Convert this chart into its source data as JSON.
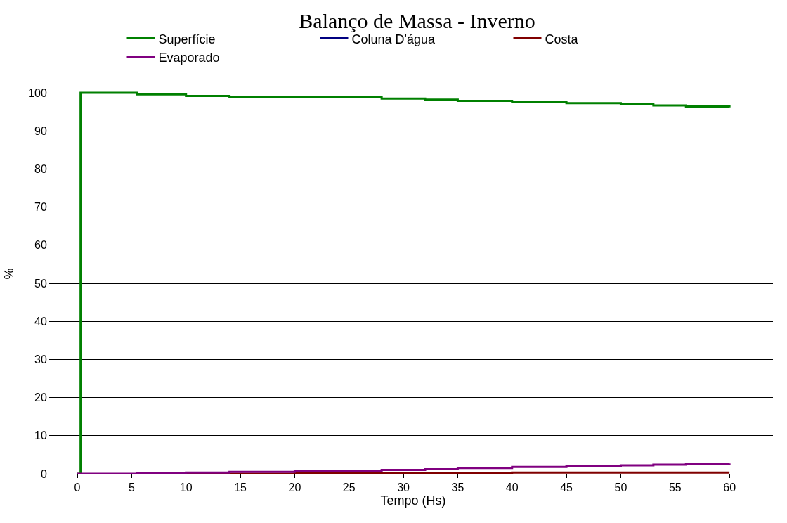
{
  "chart_data": {
    "type": "step",
    "title": "Balanço de Massa - Inverno",
    "xlabel": "Tempo (Hs)",
    "ylabel": "%",
    "x": [
      0,
      0.3,
      5.5,
      10,
      14,
      20,
      28,
      32,
      35,
      40,
      45,
      50,
      53,
      56,
      60
    ],
    "series": [
      {
        "name": "Superfície",
        "color": "#008000",
        "values": [
          0,
          100,
          99.6,
          99.2,
          99.0,
          98.8,
          98.5,
          98.2,
          97.9,
          97.6,
          97.3,
          97.0,
          96.7,
          96.4,
          96.2
        ]
      },
      {
        "name": "Coluna D'água",
        "color": "#000080",
        "values": [
          null,
          null,
          null,
          null,
          null,
          null,
          null,
          null,
          null,
          null,
          null,
          null,
          null,
          null,
          null
        ]
      },
      {
        "name": "Costa",
        "color": "#800000",
        "values": [
          null,
          null,
          null,
          0,
          0,
          0.1,
          0.1,
          0.2,
          0.2,
          0.3,
          0.3,
          0.3,
          0.3,
          0.3,
          0.3
        ]
      },
      {
        "name": "Evaporado",
        "color": "#800080",
        "values": [
          0,
          0,
          0.1,
          0.3,
          0.5,
          0.7,
          1.0,
          1.2,
          1.5,
          1.8,
          2.0,
          2.2,
          2.4,
          2.6,
          2.7
        ]
      }
    ],
    "xlim": [
      -2.2,
      64
    ],
    "xticks": [
      0,
      5,
      10,
      15,
      20,
      25,
      30,
      35,
      40,
      45,
      50,
      55,
      60
    ],
    "ylim": [
      0,
      105
    ],
    "yticks": [
      0,
      10,
      20,
      30,
      40,
      50,
      60,
      70,
      80,
      90,
      100
    ],
    "grid": "y",
    "legend": "top",
    "marker": "none",
    "line_style": "solid"
  }
}
